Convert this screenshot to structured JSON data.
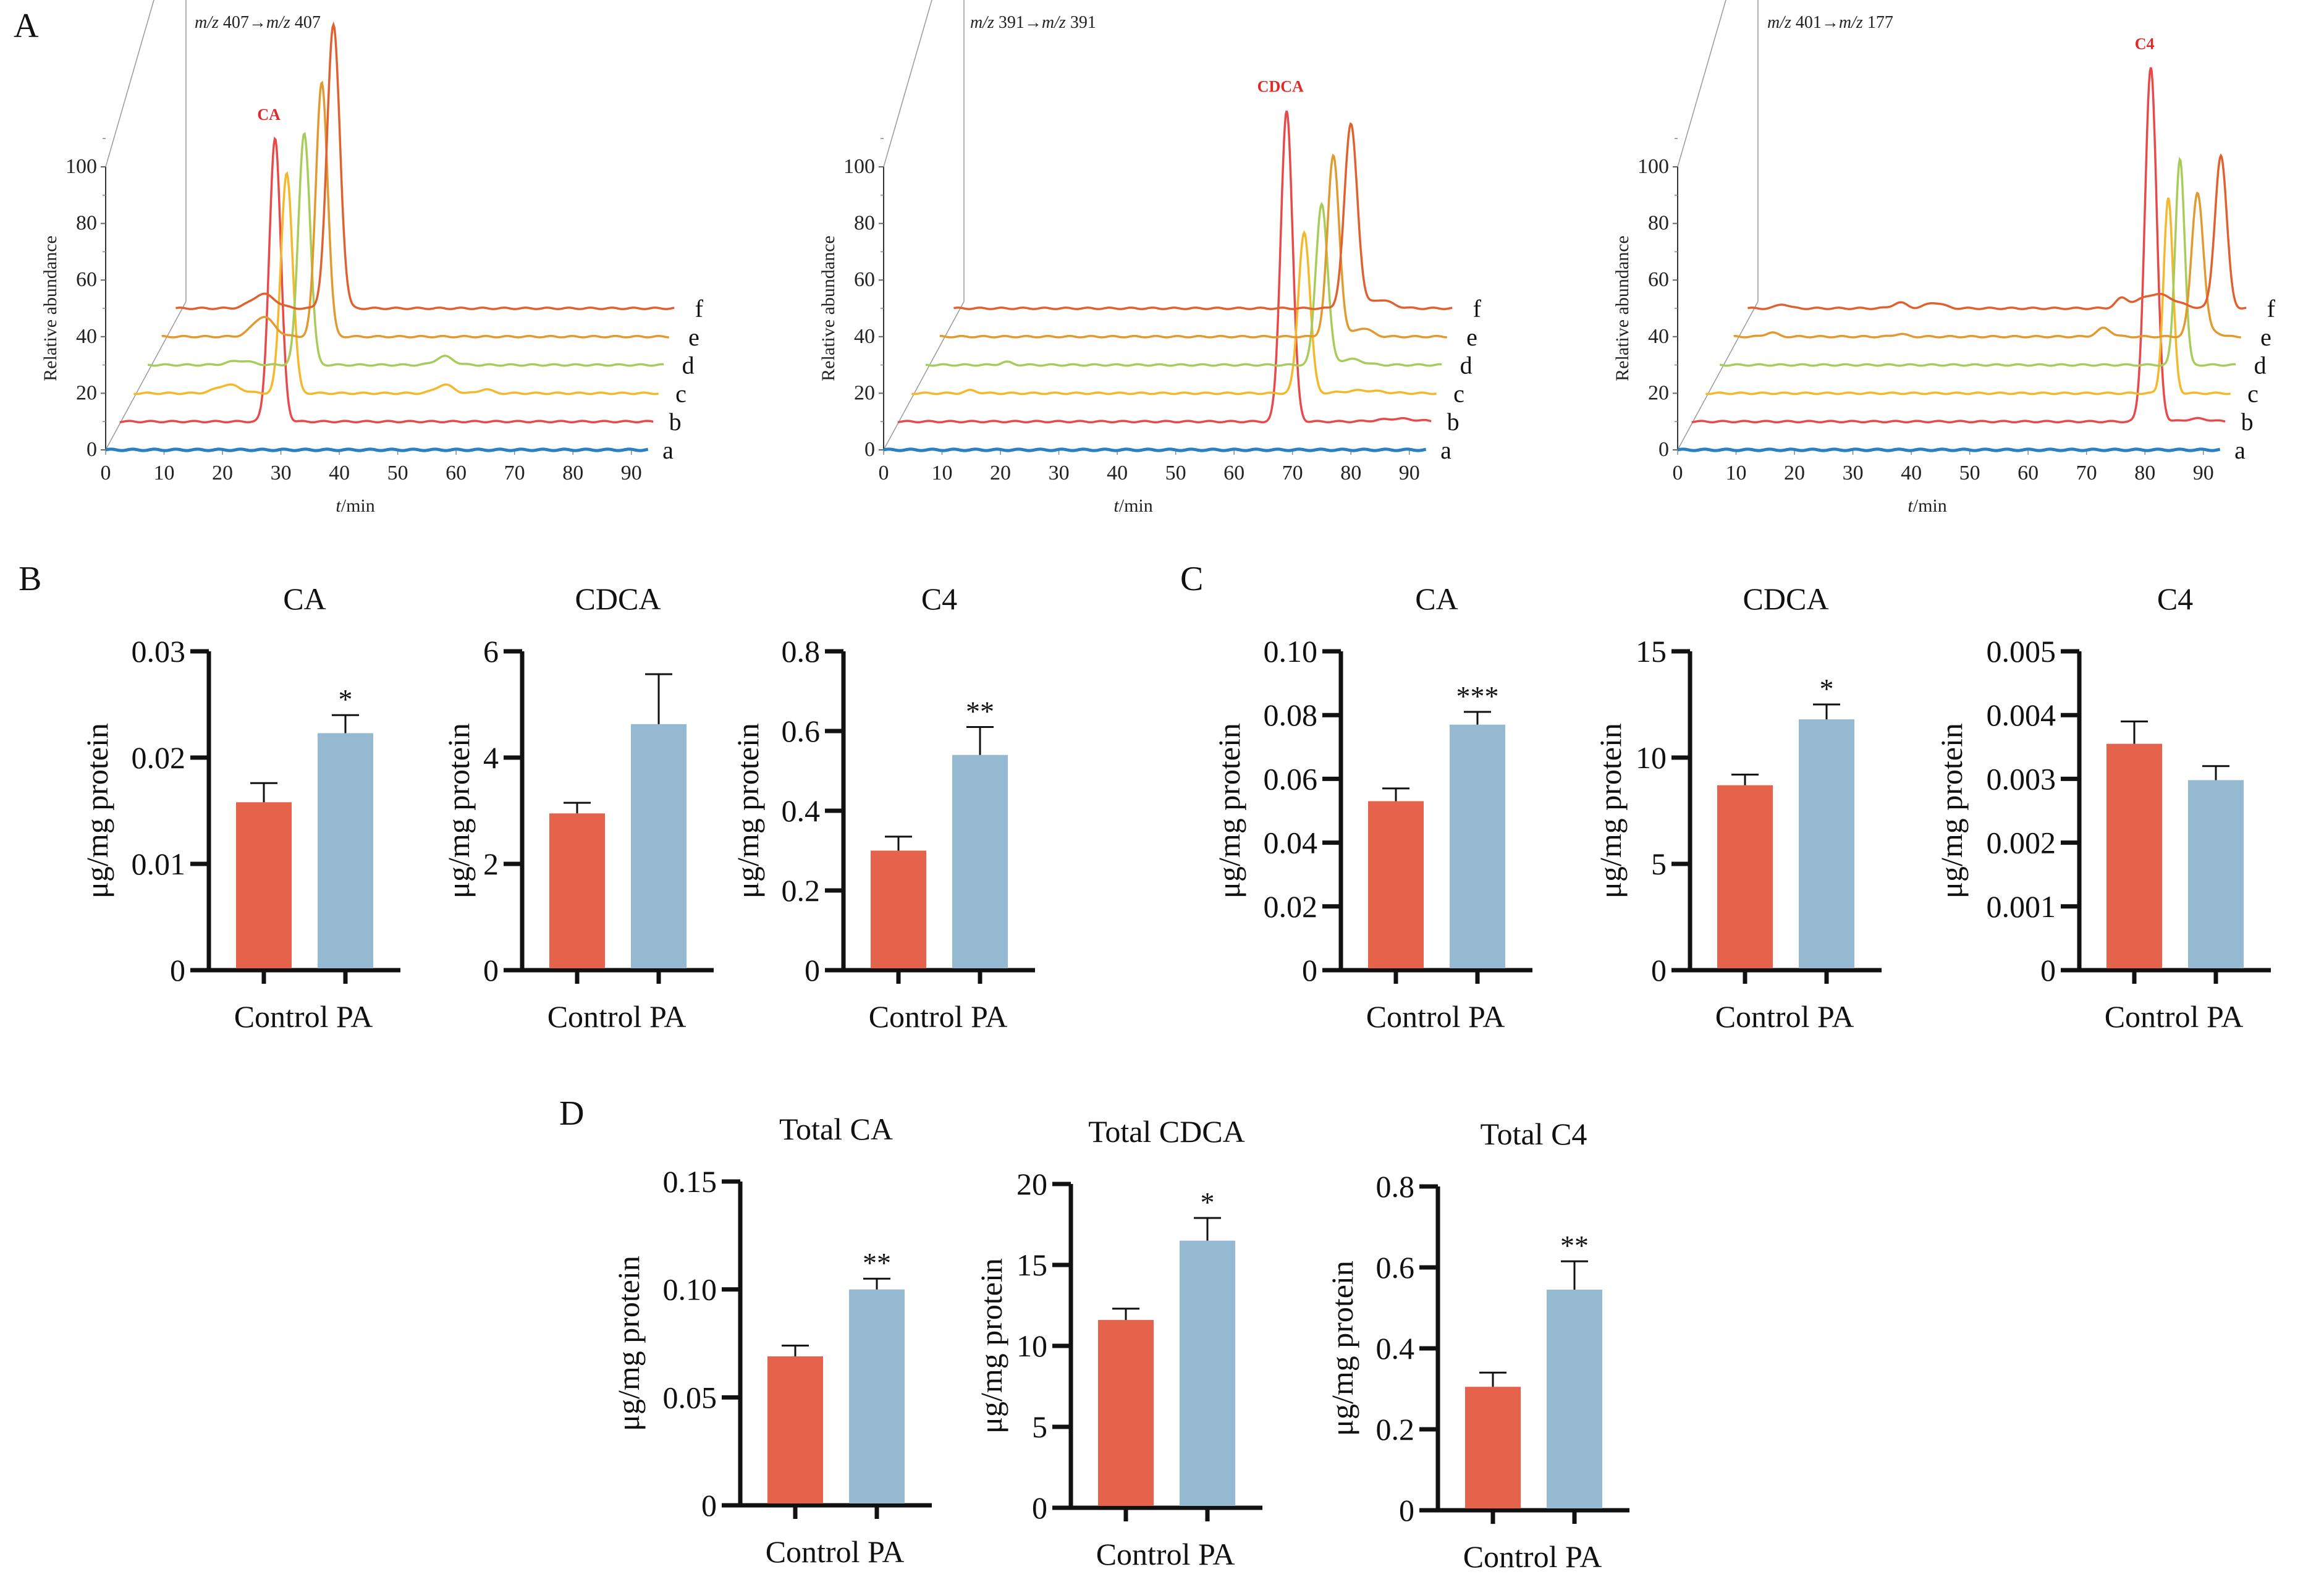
{
  "panels": {
    "A": "A",
    "B": "B",
    "C": "C",
    "D": "D"
  },
  "colors": {
    "control": "#e5634a",
    "pa": "#95b9d0",
    "traces": {
      "a": "#2e7fc1",
      "b": "#e84a4a",
      "c": "#f5b82a",
      "d": "#a8cc5a",
      "e": "#e09a30",
      "f": "#e06030"
    },
    "peak_label": "#e02a2a"
  },
  "chart_data": [
    {
      "type": "line",
      "panel": "A",
      "id": "chrom-ca",
      "title": "m/z 407→m/z 407",
      "title_parts": {
        "mz1": "m/z",
        "v1": "407",
        "arrow": "→",
        "mz2": "m/z",
        "v2": "407"
      },
      "xlabel": "t/min",
      "ylabel": "Relative abundance",
      "xlim": [
        0,
        95
      ],
      "ylim": [
        0,
        100
      ],
      "xticks": [
        0,
        10,
        20,
        30,
        40,
        50,
        60,
        70,
        80,
        90
      ],
      "yticks": [
        0,
        20,
        40,
        60,
        80,
        100
      ],
      "peak_label": "CA",
      "series": [
        {
          "name": "a",
          "offset": 0,
          "peaks": []
        },
        {
          "name": "b",
          "offset": 10,
          "peaks": [
            {
              "t": 29,
              "h": 100,
              "w": 1.0
            }
          ]
        },
        {
          "name": "c",
          "offset": 20,
          "peaks": [
            {
              "t": 21,
              "h": 3,
              "w": 2
            },
            {
              "t": 31,
              "h": 78,
              "w": 1.0
            },
            {
              "t": 58,
              "h": 3,
              "w": 1.5
            },
            {
              "t": 65,
              "h": 1.5,
              "w": 1
            }
          ]
        },
        {
          "name": "d",
          "offset": 30,
          "peaks": [
            {
              "t": 23,
              "h": 1.5,
              "w": 2
            },
            {
              "t": 34,
              "h": 82,
              "w": 1.0
            },
            {
              "t": 58,
              "h": 3,
              "w": 1.5
            }
          ]
        },
        {
          "name": "e",
          "offset": 40,
          "peaks": [
            {
              "t": 27,
              "h": 7,
              "w": 1.8
            },
            {
              "t": 37,
              "h": 90,
              "w": 1.0
            }
          ]
        },
        {
          "name": "f",
          "offset": 50,
          "peaks": [
            {
              "t": 27,
              "h": 5,
              "w": 2
            },
            {
              "t": 39,
              "h": 100,
              "w": 1.1
            }
          ]
        }
      ]
    },
    {
      "type": "line",
      "panel": "A",
      "id": "chrom-cdca",
      "title": "m/z 391→m/z 391",
      "title_parts": {
        "mz1": "m/z",
        "v1": "391",
        "arrow": "→",
        "mz2": "m/z",
        "v2": "391"
      },
      "xlabel": "t/min",
      "ylabel": "Relative abundance",
      "xlim": [
        0,
        95
      ],
      "ylim": [
        0,
        100
      ],
      "xticks": [
        0,
        10,
        20,
        30,
        40,
        50,
        60,
        70,
        80,
        90
      ],
      "yticks": [
        0,
        20,
        40,
        60,
        80,
        100
      ],
      "peak_label": "CDCA",
      "series": [
        {
          "name": "a",
          "offset": 0,
          "peaks": []
        },
        {
          "name": "b",
          "offset": 10,
          "peaks": [
            {
              "t": 69,
              "h": 110,
              "w": 1.0
            },
            {
              "t": 88,
              "h": 1,
              "w": 3
            }
          ]
        },
        {
          "name": "c",
          "offset": 20,
          "peaks": [
            {
              "t": 15,
              "h": 1,
              "w": 1
            },
            {
              "t": 72,
              "h": 57,
              "w": 1.0
            },
            {
              "t": 82,
              "h": 1,
              "w": 3
            }
          ]
        },
        {
          "name": "d",
          "offset": 30,
          "peaks": [
            {
              "t": 21,
              "h": 1,
              "w": 1
            },
            {
              "t": 75,
              "h": 57,
              "w": 1.0
            },
            {
              "t": 80,
              "h": 2,
              "w": 2
            }
          ]
        },
        {
          "name": "e",
          "offset": 40,
          "peaks": [
            {
              "t": 77,
              "h": 64,
              "w": 1.0
            },
            {
              "t": 82,
              "h": 3,
              "w": 1.5
            }
          ]
        },
        {
          "name": "f",
          "offset": 50,
          "peaks": [
            {
              "t": 80,
              "h": 65,
              "w": 1.1
            },
            {
              "t": 85,
              "h": 3,
              "w": 2
            }
          ]
        }
      ]
    },
    {
      "type": "line",
      "panel": "A",
      "id": "chrom-c4",
      "title": "m/z 401→m/z 177",
      "title_parts": {
        "mz1": "m/z",
        "v1": "401",
        "arrow": "→",
        "mz2": "m/z",
        "v2": "177"
      },
      "xlabel": "t/min",
      "ylabel": "Relative abundance",
      "xlim": [
        0,
        95
      ],
      "ylim": [
        0,
        100
      ],
      "xticks": [
        0,
        10,
        20,
        30,
        40,
        50,
        60,
        70,
        80,
        90
      ],
      "yticks": [
        0,
        20,
        40,
        60,
        80,
        100
      ],
      "peak_label": "C4",
      "series": [
        {
          "name": "a",
          "offset": 0,
          "peaks": []
        },
        {
          "name": "b",
          "offset": 10,
          "peaks": [
            {
              "t": 81,
              "h": 125,
              "w": 1.0
            },
            {
              "t": 89,
              "h": 1,
              "w": 2
            }
          ]
        },
        {
          "name": "c",
          "offset": 20,
          "peaks": [
            {
              "t": 84,
              "h": 69,
              "w": 0.8
            }
          ]
        },
        {
          "name": "d",
          "offset": 30,
          "peaks": [
            {
              "t": 86,
              "h": 73,
              "w": 0.8
            }
          ]
        },
        {
          "name": "e",
          "offset": 40,
          "peaks": [
            {
              "t": 16,
              "h": 1.5,
              "w": 1
            },
            {
              "t": 38,
              "h": 1,
              "w": 1
            },
            {
              "t": 73,
              "h": 3,
              "w": 1.2
            },
            {
              "t": 89,
              "h": 51,
              "w": 1.0
            },
            {
              "t": 92,
              "h": 1.5,
              "w": 1
            }
          ]
        },
        {
          "name": "f",
          "offset": 50,
          "peaks": [
            {
              "t": 18,
              "h": 1.5,
              "w": 1
            },
            {
              "t": 38,
              "h": 2,
              "w": 1.2
            },
            {
              "t": 44,
              "h": 2,
              "w": 1.5
            },
            {
              "t": 76,
              "h": 3,
              "w": 1
            },
            {
              "t": 82,
              "h": 5,
              "w": 3
            },
            {
              "t": 93,
              "h": 54,
              "w": 1.0
            }
          ]
        }
      ]
    },
    {
      "type": "bar",
      "panel": "B",
      "id": "b-ca",
      "title": "CA",
      "ylabel": "μg/mg protein",
      "categories": [
        "Control",
        "PA"
      ],
      "values": [
        0.0158,
        0.0223
      ],
      "errors": [
        0.0018,
        0.0017
      ],
      "significance": [
        "",
        "*"
      ],
      "ylim": [
        0,
        0.03
      ],
      "yticks": [
        "0",
        "0.01",
        "0.02",
        "0.03"
      ],
      "ytick_values": [
        0,
        0.01,
        0.02,
        0.03
      ]
    },
    {
      "type": "bar",
      "panel": "B",
      "id": "b-cdca",
      "title": "CDCA",
      "ylabel": "μg/mg protein",
      "categories": [
        "Control",
        "PA"
      ],
      "values": [
        2.95,
        4.63
      ],
      "errors": [
        0.2,
        0.94
      ],
      "significance": [
        "",
        ""
      ],
      "ylim": [
        0,
        6
      ],
      "yticks": [
        "0",
        "2",
        "4",
        "6"
      ],
      "ytick_values": [
        0,
        2,
        4,
        6
      ]
    },
    {
      "type": "bar",
      "panel": "B",
      "id": "b-c4",
      "title": "C4",
      "ylabel": "μg/mg protein",
      "categories": [
        "Control",
        "PA"
      ],
      "values": [
        0.3,
        0.54
      ],
      "errors": [
        0.035,
        0.07
      ],
      "significance": [
        "",
        "**"
      ],
      "ylim": [
        0,
        0.8
      ],
      "yticks": [
        "0",
        "0.2",
        "0.4",
        "0.6",
        "0.8"
      ],
      "ytick_values": [
        0,
        0.2,
        0.4,
        0.6,
        0.8
      ]
    },
    {
      "type": "bar",
      "panel": "C",
      "id": "c-ca",
      "title": "CA",
      "ylabel": "μg/mg protein",
      "categories": [
        "Control",
        "PA"
      ],
      "values": [
        0.053,
        0.077
      ],
      "errors": [
        0.004,
        0.004
      ],
      "significance": [
        "",
        "***"
      ],
      "ylim": [
        0,
        0.1
      ],
      "yticks": [
        "0",
        "0.02",
        "0.04",
        "0.06",
        "0.08",
        "0.10"
      ],
      "ytick_values": [
        0,
        0.02,
        0.04,
        0.06,
        0.08,
        0.1
      ]
    },
    {
      "type": "bar",
      "panel": "C",
      "id": "c-cdca",
      "title": "CDCA",
      "ylabel": "μg/mg protein",
      "categories": [
        "Control",
        "PA"
      ],
      "values": [
        8.7,
        11.8
      ],
      "errors": [
        0.5,
        0.7
      ],
      "significance": [
        "",
        "*"
      ],
      "ylim": [
        0,
        15
      ],
      "yticks": [
        "0",
        "5",
        "10",
        "15"
      ],
      "ytick_values": [
        0,
        5,
        10,
        15
      ]
    },
    {
      "type": "bar",
      "panel": "C",
      "id": "c-c4",
      "title": "C4",
      "ylabel": "μg/mg protein",
      "categories": [
        "Control",
        "PA"
      ],
      "values": [
        0.00355,
        0.00298
      ],
      "errors": [
        0.00035,
        0.00022
      ],
      "significance": [
        "",
        ""
      ],
      "ylim": [
        0,
        0.005
      ],
      "yticks": [
        "0",
        "0.001",
        "0.002",
        "0.003",
        "0.004",
        "0.005"
      ],
      "ytick_values": [
        0,
        0.001,
        0.002,
        0.003,
        0.004,
        0.005
      ]
    },
    {
      "type": "bar",
      "panel": "D",
      "id": "d-ca",
      "title": "Total CA",
      "ylabel": "μg/mg protein",
      "categories": [
        "Control",
        "PA"
      ],
      "values": [
        0.069,
        0.1
      ],
      "errors": [
        0.005,
        0.005
      ],
      "significance": [
        "",
        "**"
      ],
      "ylim": [
        0,
        0.15
      ],
      "yticks": [
        "0",
        "0.05",
        "0.10",
        "0.15"
      ],
      "ytick_values": [
        0,
        0.05,
        0.1,
        0.15
      ]
    },
    {
      "type": "bar",
      "panel": "D",
      "id": "d-cdca",
      "title": "Total CDCA",
      "ylabel": "μg/mg protein",
      "categories": [
        "Control",
        "PA"
      ],
      "values": [
        11.6,
        16.5
      ],
      "errors": [
        0.7,
        1.4
      ],
      "significance": [
        "",
        "*"
      ],
      "ylim": [
        0,
        20
      ],
      "yticks": [
        "0",
        "5",
        "10",
        "15",
        "20"
      ],
      "ytick_values": [
        0,
        5,
        10,
        15,
        20
      ]
    },
    {
      "type": "bar",
      "panel": "D",
      "id": "d-c4",
      "title": "Total C4",
      "ylabel": "μg/mg protein",
      "categories": [
        "Control",
        "PA"
      ],
      "values": [
        0.305,
        0.545
      ],
      "errors": [
        0.035,
        0.07
      ],
      "significance": [
        "",
        "**"
      ],
      "ylim": [
        0,
        0.8
      ],
      "yticks": [
        "0",
        "0.2",
        "0.4",
        "0.6",
        "0.8"
      ],
      "ytick_values": [
        0,
        0.2,
        0.4,
        0.6,
        0.8
      ]
    }
  ]
}
